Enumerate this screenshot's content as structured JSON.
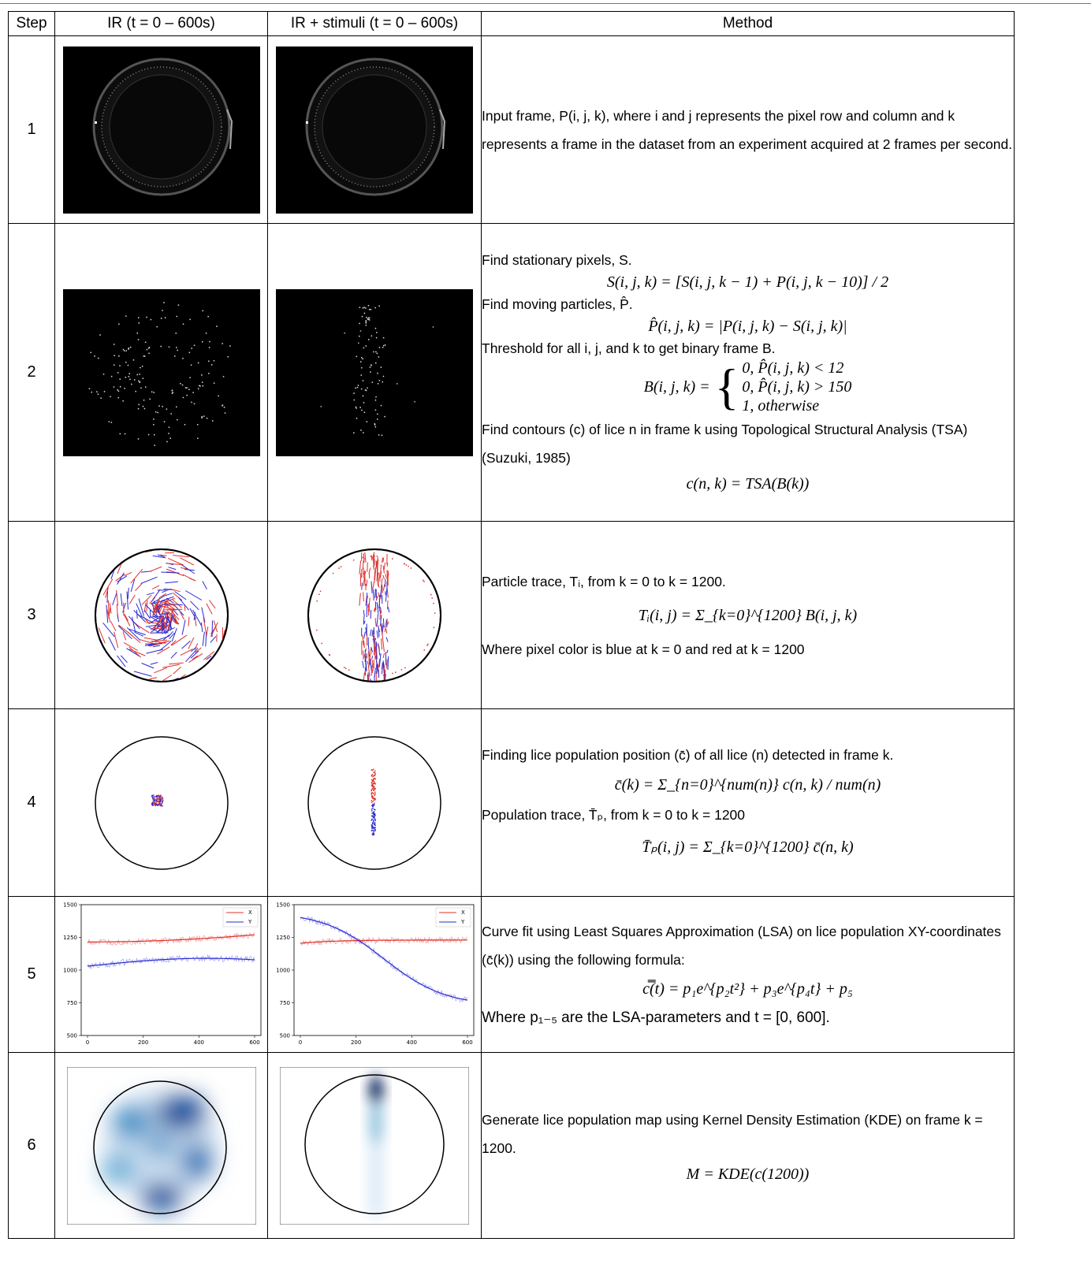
{
  "header": {
    "step": "Step",
    "ir": "IR (t = 0 – 600s)",
    "ir_stimuli": "IR + stimuli (t = 0 – 600s)",
    "method": "Method"
  },
  "rows": [
    {
      "step": "1",
      "method": {
        "p1a": "Input frame, P(i, j, k), where i and j represents the pixel row and column and k represents a frame in the dataset from an experiment acquired at 2 frames per second."
      }
    },
    {
      "step": "2",
      "method": {
        "t1": "Find stationary pixels, S.",
        "eq1": "S(i, j, k) = [S(i, j, k − 1) + P(i, j, k − 10)] / 2",
        "t2": "Find moving particles, P̂.",
        "eq2": "P̂(i, j, k) = |P(i, j, k) − S(i, j, k)|",
        "t3": "Threshold for all i, j, and k to get binary frame B.",
        "eq3a": "0,   P̂(i, j, k) < 12",
        "eq3b": "0,   P̂(i, j, k) > 150",
        "eq3c": "1,   otherwise",
        "eq3lhs": "B(i, j, k) =",
        "t4": "Find contours (c) of lice n in frame k using Topological Structural Analysis (TSA) (Suzuki, 1985)",
        "eq4": "c(n, k) = TSA(B(k))"
      }
    },
    {
      "step": "3",
      "method": {
        "t1": "Particle trace, Tᵢ, from k = 0 to k = 1200.",
        "eq1": "Tᵢ(i, j) = Σ_{k=0}^{1200} B(i, j, k)",
        "t2": "Where pixel color is blue at k = 0 and red at k = 1200"
      }
    },
    {
      "step": "4",
      "method": {
        "t1": "Finding lice population position (c̄) of all lice (n) detected in frame k.",
        "eq1": "c̄(k) = Σ_{n=0}^{num(n)} c(n, k) / num(n)",
        "t2": "Population trace, T̄ₚ, from  k = 0 to k = 1200",
        "eq2": "T̄ₚ(i, j) = Σ_{k=0}^{1200} c̄(n, k)"
      }
    },
    {
      "step": "5",
      "method": {
        "t1": "Curve fit using Least Squares Approximation (LSA) on lice population XY-coordinates (c̄(k)) using the following formula:",
        "eq1": "c̿(t) = p₁e^{p₂t²} + p₃e^{p₄t} + p₅",
        "t2": "Where p₁₋₅ are the LSA-parameters and t = [0, 600]."
      },
      "plots": {
        "yticks": [
          "1500",
          "1250",
          "1000",
          "750",
          "500"
        ],
        "xticks": [
          "0",
          "200",
          "400",
          "600"
        ],
        "legend": [
          "X",
          "Y"
        ]
      }
    },
    {
      "step": "6",
      "method": {
        "t1": "Generate lice population map using Kernel Density Estimation (KDE) on frame k = 1200.",
        "eq1": "M = KDE(c(1200))"
      }
    }
  ],
  "colors": {
    "red": "#e0302a",
    "blue": "#2a2ad0",
    "kde": "#08519c"
  }
}
